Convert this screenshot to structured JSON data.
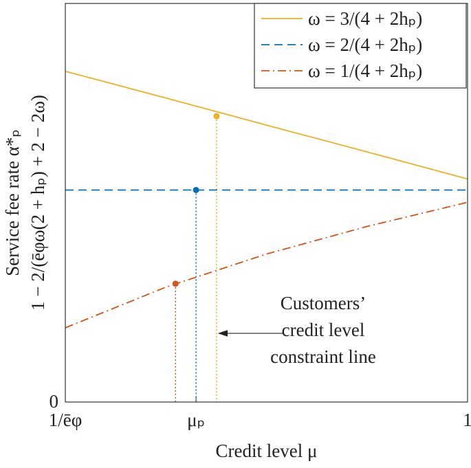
{
  "chart_data": {
    "type": "line",
    "xlabel": "Credit level μ",
    "ylabel": [
      "Service fee rate α*ₚ",
      "1 − 2/(ēφω(2 + hₚ) + 2 − 2ω)"
    ],
    "x": [
      0,
      0.25,
      0.5,
      0.75,
      1
    ],
    "xlim": [
      0,
      1
    ],
    "xticks": [
      {
        "value": 0,
        "label": "1/ēφ"
      },
      {
        "value": 0.325,
        "label": "μₚ"
      },
      1
    ],
    "ylim": [
      0,
      0.94
    ],
    "yticks": [
      0
    ],
    "legend": "upper right",
    "series": [
      {
        "name": "ω = 3/(4 + 2hₚ)",
        "color": "#EDB120",
        "dash": "solid",
        "values": [
          0.78,
          0.717,
          0.653,
          0.59,
          0.526
        ],
        "highlight": {
          "x": 0.376,
          "y": 0.674
        }
      },
      {
        "name": "ω = 2/(4 + 2hₚ)",
        "color": "#0072BD",
        "dash": "dashed",
        "values": [
          0.5,
          0.5,
          0.5,
          0.5,
          0.5
        ],
        "highlight": {
          "x": 0.325,
          "y": 0.5
        }
      },
      {
        "name": "ω = 1/(4 + 2hₚ)",
        "color": "#D95319",
        "dash": "dashdot",
        "values": [
          0.175,
          0.271,
          0.349,
          0.414,
          0.471
        ],
        "highlight": {
          "x": 0.274,
          "y": 0.279
        }
      }
    ],
    "annotation": {
      "lines": [
        "Customers’",
        "credit level",
        "constraint line"
      ],
      "x": 0.376,
      "y": 0.162
    }
  }
}
